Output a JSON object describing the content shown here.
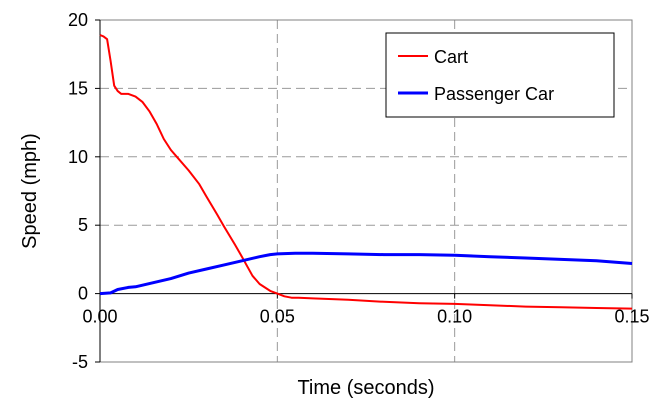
{
  "chart_data": {
    "type": "line",
    "title": "",
    "xlabel": "Time (seconds)",
    "ylabel": "Speed (mph)",
    "xlim": [
      0,
      0.15
    ],
    "ylim": [
      -5,
      20
    ],
    "x_ticks": [
      0.0,
      0.05,
      0.1,
      0.15
    ],
    "x_tick_labels": [
      "0.00",
      "0.05",
      "0.10",
      "0.15"
    ],
    "y_ticks": [
      -5,
      0,
      5,
      10,
      15,
      20
    ],
    "y_tick_labels": [
      "-5",
      "0",
      "5",
      "10",
      "15",
      "20"
    ],
    "grid": "dashed",
    "legend_position": "top-right",
    "series": [
      {
        "name": "Cart",
        "color": "#ff0000",
        "x": [
          0.0,
          0.001,
          0.002,
          0.003,
          0.004,
          0.005,
          0.006,
          0.008,
          0.01,
          0.012,
          0.014,
          0.016,
          0.018,
          0.02,
          0.022,
          0.025,
          0.028,
          0.03,
          0.033,
          0.035,
          0.038,
          0.04,
          0.043,
          0.045,
          0.048,
          0.05,
          0.052,
          0.054,
          0.056,
          0.06,
          0.07,
          0.08,
          0.09,
          0.1,
          0.11,
          0.12,
          0.13,
          0.14,
          0.15
        ],
        "y": [
          18.9,
          18.8,
          18.6,
          17.0,
          15.2,
          14.8,
          14.6,
          14.6,
          14.4,
          14.0,
          13.3,
          12.4,
          11.3,
          10.5,
          9.9,
          9.0,
          8.0,
          7.1,
          5.8,
          4.9,
          3.6,
          2.7,
          1.3,
          0.7,
          0.2,
          0.0,
          -0.2,
          -0.3,
          -0.3,
          -0.35,
          -0.45,
          -0.6,
          -0.7,
          -0.75,
          -0.85,
          -0.95,
          -1.0,
          -1.05,
          -1.1
        ]
      },
      {
        "name": "Passenger Car",
        "color": "#0000ff",
        "x": [
          0.0,
          0.003,
          0.005,
          0.008,
          0.01,
          0.015,
          0.02,
          0.025,
          0.03,
          0.035,
          0.04,
          0.045,
          0.048,
          0.05,
          0.055,
          0.06,
          0.07,
          0.08,
          0.09,
          0.1,
          0.11,
          0.12,
          0.13,
          0.14,
          0.15
        ],
        "y": [
          0.0,
          0.05,
          0.3,
          0.45,
          0.5,
          0.8,
          1.1,
          1.5,
          1.8,
          2.1,
          2.4,
          2.7,
          2.85,
          2.9,
          2.95,
          2.95,
          2.9,
          2.85,
          2.85,
          2.8,
          2.7,
          2.6,
          2.5,
          2.4,
          2.2
        ]
      }
    ]
  }
}
